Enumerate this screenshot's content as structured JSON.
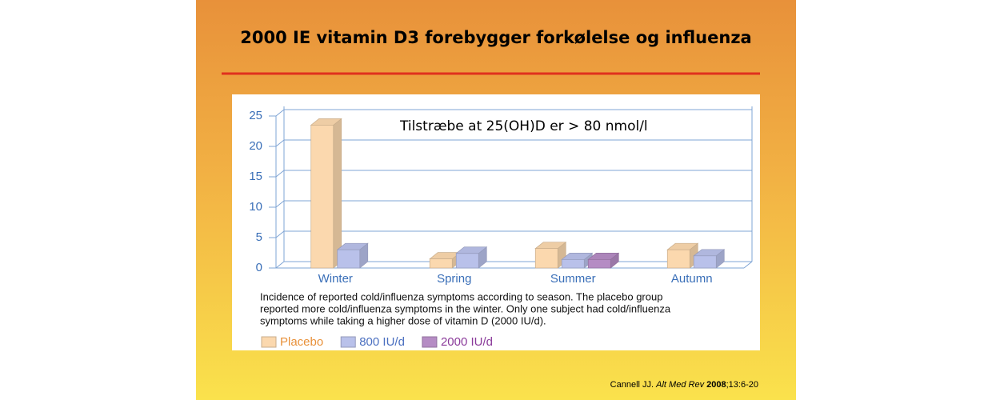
{
  "chart_data": {
    "type": "bar3d",
    "title": "2000 IE vitamin D3 forebygger forkølelse og influenza",
    "annotation": "Tilstræbe at 25(OH)D er > 80 nmol/l",
    "categories": [
      "Winter",
      "Spring",
      "Summer",
      "Autumn"
    ],
    "series": [
      {
        "name": "Placebo",
        "color": "#fbd8ae",
        "values": [
          23.5,
          1.5,
          3.2,
          3
        ]
      },
      {
        "name": "800 IU/d",
        "color": "#b9c1ea",
        "values": [
          3,
          2.4,
          1.4,
          2
        ]
      },
      {
        "name": "2000 IU/d",
        "color": "#b58cc4",
        "values": [
          null,
          null,
          1.4,
          null
        ]
      }
    ],
    "ylim": [
      0,
      25
    ],
    "yticks": [
      0,
      5,
      10,
      15,
      20,
      25
    ],
    "grid": true,
    "caption": [
      "Incidence of reported cold/influenza symptoms according to season. The placebo group",
      "reported more cold/influenza symptoms in the winter. Only one subject had cold/influenza",
      "symptoms while taking a higher dose of vitamin D (2000 IU/d)."
    ],
    "citation": {
      "author": "Cannell JJ.",
      "journal": "Alt Med Rev",
      "year": "2008",
      "details": ";13:6-20"
    }
  }
}
